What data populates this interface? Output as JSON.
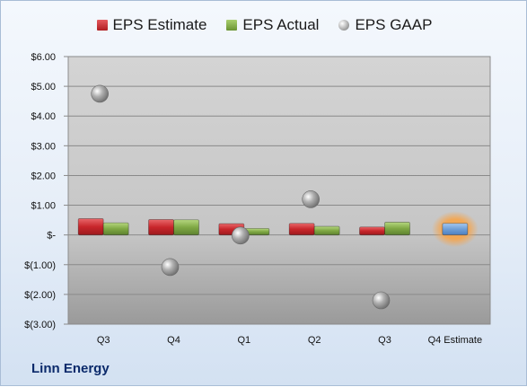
{
  "chart_data": {
    "type": "bar",
    "title": "",
    "company": "Linn Energy",
    "categories": [
      "Q3",
      "Q4",
      "Q1",
      "Q2",
      "Q3",
      "Q4 Estimate"
    ],
    "series": [
      {
        "name": "EPS Estimate",
        "kind": "bar",
        "color": "#c8262b",
        "values": [
          0.55,
          0.52,
          0.38,
          0.39,
          0.27,
          null
        ]
      },
      {
        "name": "EPS Actual",
        "kind": "bar",
        "color": "#7fa844",
        "values": [
          0.41,
          0.51,
          0.22,
          0.29,
          0.43,
          null
        ]
      },
      {
        "name": "EPS GAAP",
        "kind": "point",
        "color": "#a6a6a6",
        "values": [
          4.75,
          -1.08,
          -0.02,
          1.2,
          -2.2,
          null
        ]
      },
      {
        "name": "",
        "kind": "bar",
        "color": "#6f9fd8",
        "values": [
          null,
          null,
          null,
          null,
          null,
          0.39
        ]
      }
    ],
    "yticks": [
      "$6.00",
      "$5.00",
      "$4.00",
      "$3.00",
      "$2.00",
      "$1.00",
      "$-",
      "$(1.00)",
      "$(2.00)",
      "$(3.00)"
    ],
    "ylim": [
      -3,
      6
    ],
    "grid": true,
    "legend": "top"
  }
}
